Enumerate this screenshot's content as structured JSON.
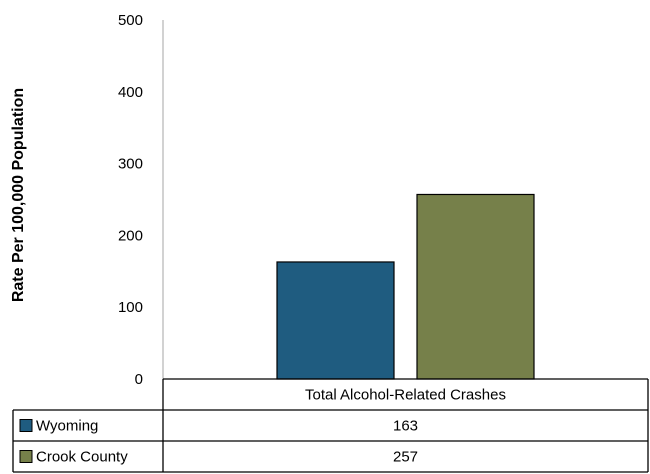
{
  "chart_data": {
    "type": "bar",
    "categories": [
      "Total Alcohol-Related Crashes"
    ],
    "series": [
      {
        "name": "Wyoming",
        "values": [
          163
        ],
        "color": "#1f5c80"
      },
      {
        "name": "Crook County",
        "values": [
          257
        ],
        "color": "#76804a"
      }
    ],
    "ylabel": "Rate Per 100,000 Population",
    "ylim": [
      0,
      500
    ],
    "yticks": [
      0,
      100,
      200,
      300,
      400,
      500
    ],
    "grid": false,
    "legend": "data-table"
  }
}
